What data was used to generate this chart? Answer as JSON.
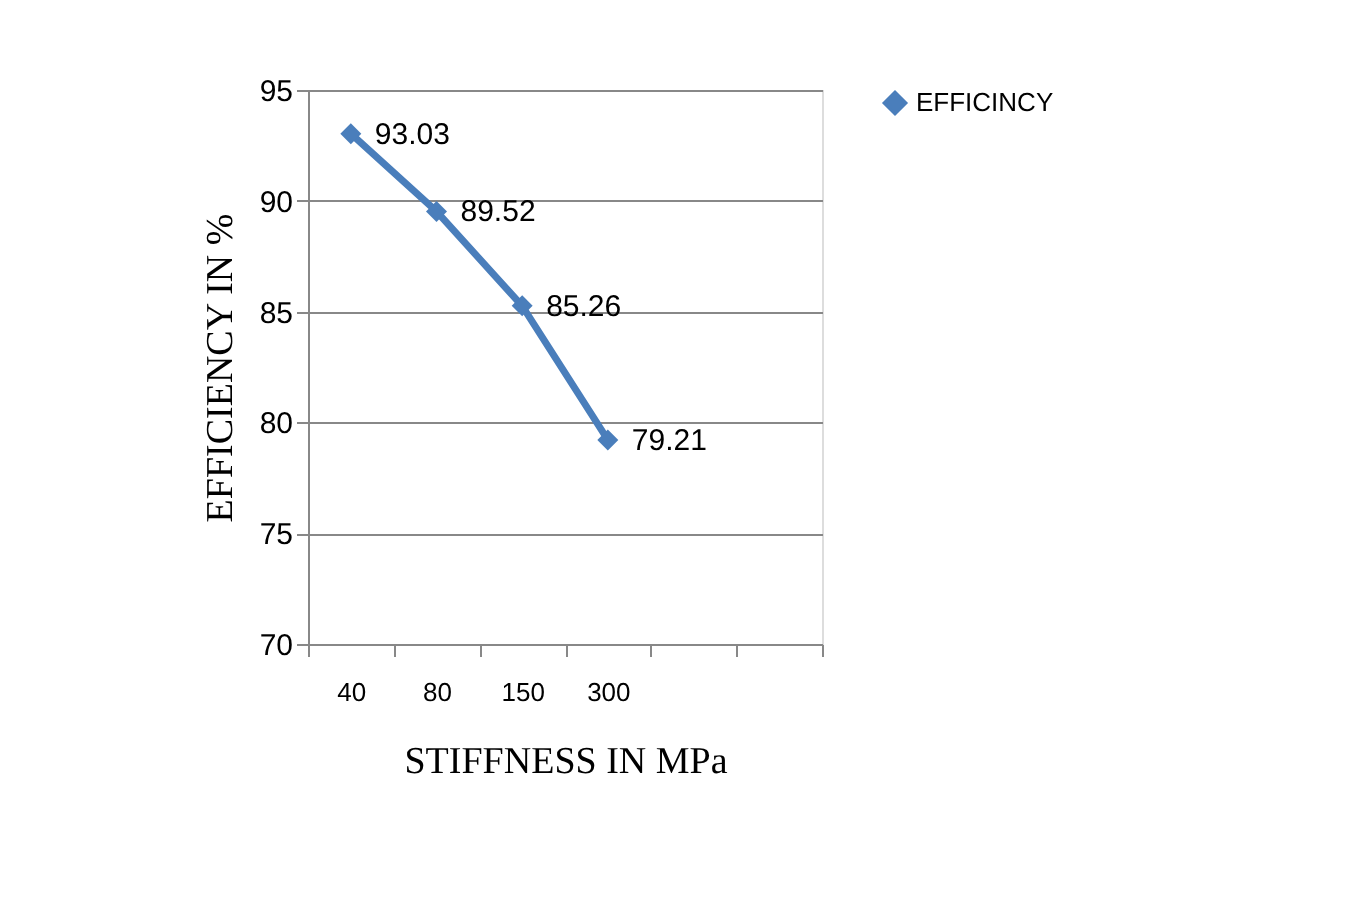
{
  "chart_data": {
    "type": "line",
    "xlabel": "STIFFNESS IN MPa",
    "ylabel": "EFFICIENCY IN %",
    "categories": [
      "40",
      "80",
      "150",
      "300",
      null,
      null
    ],
    "series": [
      {
        "name": "EFFICINCY",
        "color": "#4a7ebb",
        "values": [
          93.03,
          89.52,
          85.26,
          79.21,
          null,
          null
        ]
      }
    ],
    "ylim": [
      70,
      95
    ],
    "yticks": [
      70,
      75,
      80,
      85,
      90,
      95
    ],
    "grid": "y",
    "legend": "right",
    "marker": "diamond",
    "data_labels": true
  }
}
